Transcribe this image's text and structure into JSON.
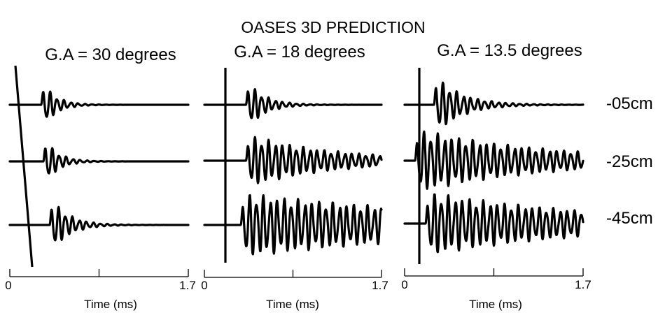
{
  "chart_data": {
    "type": "line",
    "title": "OASES 3D PREDICTION",
    "xlabel": "Time (ms)",
    "xlim": [
      0,
      1.7
    ],
    "x_ticks": [
      "0",
      "1.7"
    ],
    "depth_labels": [
      "-05cm",
      "-25cm",
      "-45cm"
    ],
    "panels": [
      {
        "title": "G.A = 30 degrees",
        "marker": "slanted",
        "traces": [
          {
            "depth": "-05cm",
            "onset": 0.3,
            "amp": 1.0,
            "decay": 8,
            "freq": 15
          },
          {
            "depth": "-25cm",
            "onset": 0.32,
            "amp": 1.0,
            "decay": 8,
            "freq": 15
          },
          {
            "depth": "-45cm",
            "onset": 0.38,
            "amp": 1.15,
            "decay": 6,
            "freq": 15
          }
        ]
      },
      {
        "title": "G.A = 18 degrees",
        "marker": "vertical",
        "traces": [
          {
            "depth": "-05cm",
            "onset": 0.4,
            "amp": 1.0,
            "decay": 6,
            "freq": 15
          },
          {
            "depth": "-25cm",
            "onset": 0.4,
            "amp": 1.0,
            "decay": 1.2,
            "freq": 15
          },
          {
            "depth": "-45cm",
            "onset": 0.35,
            "amp": 1.2,
            "decay": 0.4,
            "freq": 15
          }
        ]
      },
      {
        "title": "G.A = 13.5 degrees",
        "marker": "vertical",
        "traces": [
          {
            "depth": "-05cm",
            "onset": 0.28,
            "amp": 1.2,
            "decay": 4,
            "freq": 15
          },
          {
            "depth": "-25cm",
            "onset": 0.1,
            "amp": 1.2,
            "decay": 0.8,
            "freq": 15
          },
          {
            "depth": "-45cm",
            "onset": 0.2,
            "amp": 1.2,
            "decay": 0.6,
            "freq": 15
          }
        ]
      }
    ]
  }
}
